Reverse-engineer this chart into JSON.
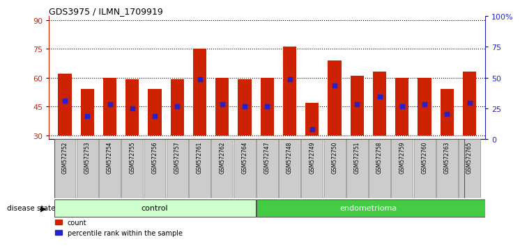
{
  "title": "GDS3975 / ILMN_1709919",
  "samples": [
    "GSM572752",
    "GSM572753",
    "GSM572754",
    "GSM572755",
    "GSM572756",
    "GSM572757",
    "GSM572761",
    "GSM572762",
    "GSM572764",
    "GSM572747",
    "GSM572748",
    "GSM572749",
    "GSM572750",
    "GSM572751",
    "GSM572758",
    "GSM572759",
    "GSM572760",
    "GSM572763",
    "GSM572765"
  ],
  "bar_heights": [
    62,
    54,
    60,
    59,
    54,
    59,
    75,
    60,
    59,
    60,
    76,
    47,
    69,
    61,
    63,
    60,
    60,
    54,
    63
  ],
  "bar_base": 30,
  "blue_dot_values": [
    48,
    40,
    46,
    44,
    40,
    45,
    59,
    46,
    45,
    45,
    59,
    33,
    56,
    46,
    50,
    45,
    46,
    41,
    47
  ],
  "ylim_left": [
    28,
    92
  ],
  "ylim_right": [
    0,
    100
  ],
  "yticks_left": [
    30,
    45,
    60,
    75,
    90
  ],
  "yticks_right": [
    0,
    25,
    50,
    75,
    100
  ],
  "bar_color": "#cc2200",
  "dot_color": "#2222cc",
  "control_samples": 9,
  "control_label": "control",
  "endometrioma_label": "endometrioma",
  "control_bg": "#ccffcc",
  "endometrioma_bg": "#44cc44",
  "plot_bg": "#ffffff",
  "tick_label_bg": "#cccccc",
  "disease_state_label": "disease state"
}
